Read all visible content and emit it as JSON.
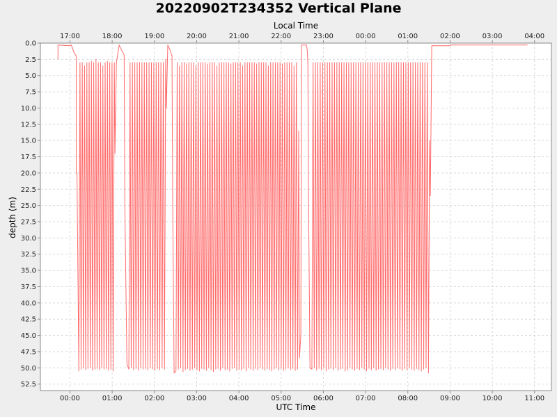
{
  "chart_data": {
    "type": "line",
    "title": "20220902T234352 Vertical Plane",
    "xlabel": "UTC Time",
    "x2label": "Local Time",
    "ylabel": "depth (m)",
    "y_inverted": true,
    "ylim": [
      0,
      53.5
    ],
    "xlim_utc": [
      "23:18",
      "11:24"
    ],
    "yticks": [
      "0.0",
      "2.5",
      "5.0",
      "7.5",
      "10.0",
      "12.5",
      "15.0",
      "17.5",
      "20.0",
      "22.5",
      "25.0",
      "27.5",
      "30.0",
      "32.5",
      "35.0",
      "37.5",
      "40.0",
      "42.5",
      "45.0",
      "47.5",
      "50.0",
      "52.5"
    ],
    "xticks_utc": [
      "00:00",
      "01:00",
      "02:00",
      "03:00",
      "04:00",
      "05:00",
      "06:00",
      "07:00",
      "08:00",
      "09:00",
      "10:00",
      "11:00"
    ],
    "xticks_local": [
      "17:00",
      "18:00",
      "19:00",
      "20:00",
      "21:00",
      "22:00",
      "23:00",
      "00:00",
      "01:00",
      "02:00",
      "03:00",
      "04:00"
    ],
    "grid": true,
    "series_color": "#ff6b6b",
    "series": [
      {
        "segments": [
          [
            [
              "23:43",
              2.5
            ],
            [
              "23:43",
              0.3
            ],
            [
              "00:00",
              0.4
            ],
            [
              "00:02",
              0.3
            ],
            [
              "00:06",
              1.5
            ],
            [
              "00:09",
              2.0
            ],
            [
              "00:09",
              20.0
            ],
            [
              "00:10",
              20.0
            ]
          ],
          {
            "t_start": "00:11",
            "t_end": "01:03",
            "dives": [
              50.5,
              50.2,
              50.0,
              50.3,
              50.1,
              50.0,
              50.4,
              50.2,
              50.1,
              50.3,
              50.0,
              50.2,
              50.1,
              50.4,
              50.2,
              50.5
            ],
            "shallow": [
              3.0,
              3.0,
              3.5,
              3.0,
              3.0,
              2.8,
              3.0,
              2.5,
              3.0,
              3.0,
              3.5,
              3.0,
              2.8,
              3.0,
              3.0,
              3.0
            ]
          },
          [
            [
              "01:04",
              17.0
            ],
            [
              "01:06",
              3.0
            ],
            [
              "01:10",
              0.3
            ],
            [
              "01:13",
              1.0
            ],
            [
              "01:17",
              1.8
            ],
            [
              "01:18",
              25.0
            ],
            [
              "01:21",
              49.5
            ]
          ],
          {
            "t_start": "01:22",
            "t_end": "02:16",
            "dives": [
              50.2,
              50.0,
              50.3,
              50.1,
              50.4,
              50.0,
              50.2,
              50.1,
              50.3,
              50.0,
              50.2,
              50.4,
              50.1,
              50.3,
              50.0,
              50.2
            ],
            "shallow": [
              3.0,
              3.0,
              3.0,
              3.0,
              3.0,
              3.0,
              3.0,
              3.0,
              3.0,
              3.0,
              3.0,
              3.0,
              3.0,
              3.0,
              3.0,
              2.5
            ]
          },
          [
            [
              "02:17",
              10.0
            ],
            [
              "02:19",
              0.3
            ],
            [
              "02:22",
              1.0
            ],
            [
              "02:25",
              2.0
            ],
            [
              "02:26",
              25.0
            ],
            [
              "02:28",
              50.8
            ]
          ],
          {
            "t_start": "02:29",
            "t_end": "05:25",
            "dives": [
              50.5,
              50.2,
              50.0,
              50.6,
              50.3,
              50.1,
              50.4,
              50.2,
              50.0,
              50.3,
              50.5,
              50.1,
              50.2,
              50.4,
              50.0,
              50.3,
              50.6,
              50.2,
              50.1,
              50.4,
              50.0,
              50.3,
              50.2,
              50.5,
              50.1,
              50.0,
              50.4,
              50.2,
              50.3,
              50.1,
              50.5,
              50.0,
              50.2,
              50.4,
              50.1,
              50.3,
              50.0,
              50.2,
              50.4,
              50.1,
              50.3,
              50.5,
              50.2,
              50.0,
              50.3,
              50.1,
              50.4,
              50.2,
              50.0,
              50.3,
              50.1,
              50.4,
              50.2
            ],
            "shallow": [
              3.0,
              3.5,
              3.0,
              3.0,
              3.2,
              3.0,
              3.0,
              3.0,
              3.5,
              3.0,
              3.0,
              3.0,
              3.0,
              3.2,
              3.0,
              3.0,
              3.0,
              3.5,
              3.0,
              3.0,
              3.0,
              3.0,
              3.0,
              3.2,
              3.0,
              3.0,
              3.0,
              3.0,
              3.5,
              3.0,
              3.0,
              3.0,
              3.0,
              3.0,
              3.2,
              3.0,
              3.0,
              3.0,
              3.0,
              3.5,
              3.0,
              3.0,
              3.0,
              3.0,
              3.0,
              3.2,
              3.0,
              3.0,
              3.0,
              3.0,
              3.5,
              3.0,
              13.5
            ]
          },
          [
            [
              "05:26",
              48.5
            ],
            [
              "05:28",
              45.0
            ],
            [
              "05:29",
              0.3
            ],
            [
              "05:36",
              0.3
            ],
            [
              "05:37",
              1.0
            ],
            [
              "05:38",
              3.0
            ],
            [
              "05:39",
              25.0
            ],
            [
              "05:41",
              50.0
            ]
          ],
          {
            "t_start": "05:42",
            "t_end": "08:31",
            "dives": [
              50.2,
              50.0,
              50.4,
              50.1,
              50.3,
              50.0,
              50.5,
              50.2,
              50.1,
              50.3,
              50.0,
              50.4,
              50.2,
              50.1,
              50.5,
              50.3,
              50.0,
              50.2,
              50.4,
              50.1,
              50.3,
              50.0,
              50.2,
              50.5,
              50.1,
              50.3,
              50.0,
              50.4,
              50.2,
              50.1,
              50.3,
              50.0,
              50.2,
              50.4,
              50.1,
              50.3,
              50.0,
              50.2,
              50.4,
              50.1,
              50.3,
              50.0,
              50.2,
              50.4,
              50.1,
              50.3,
              50.5,
              50.2,
              50.0,
              50.8
            ],
            "shallow": [
              3.0,
              3.0,
              3.0,
              3.0,
              3.0,
              3.0,
              3.0,
              3.0,
              3.0,
              3.0,
              3.0,
              3.0,
              3.0,
              3.0,
              3.0,
              3.0,
              3.0,
              3.0,
              3.0,
              3.0,
              3.0,
              3.0,
              3.0,
              3.0,
              3.0,
              3.0,
              3.0,
              3.0,
              3.0,
              3.0,
              3.0,
              3.0,
              3.0,
              3.0,
              3.0,
              3.0,
              3.0,
              3.0,
              3.0,
              3.0,
              3.0,
              3.0,
              3.0,
              3.0,
              3.0,
              3.0,
              3.0,
              3.0,
              3.0,
              15.0
            ]
          },
          [
            [
              "08:32",
              23.5
            ],
            [
              "08:34",
              0.4
            ],
            [
              "09:00",
              0.4
            ],
            [
              "09:01",
              0.3
            ],
            [
              "10:50",
              0.3
            ]
          ]
        ]
      }
    ]
  }
}
